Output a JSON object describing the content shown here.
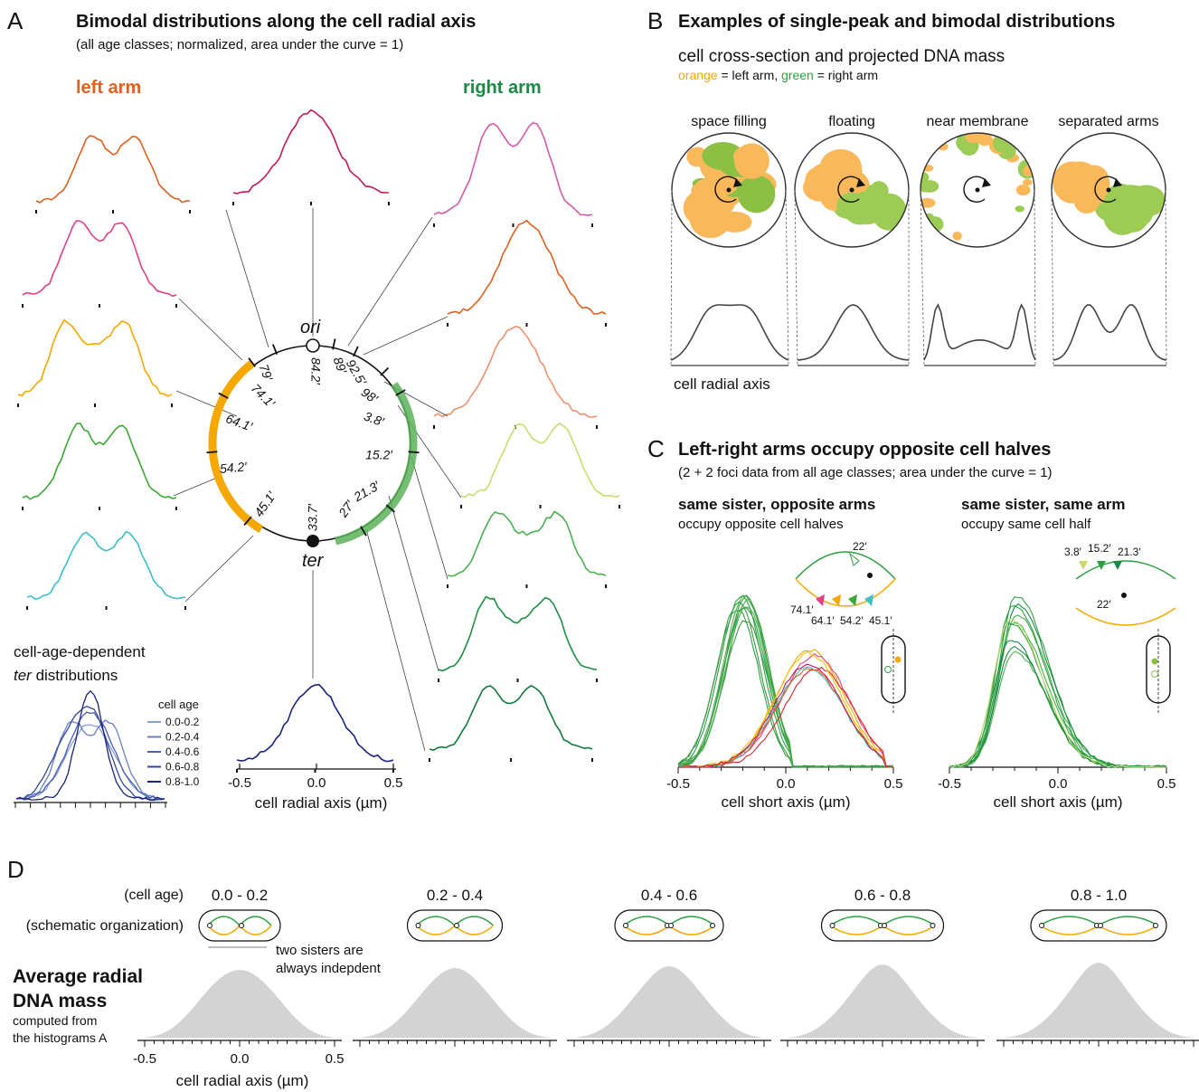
{
  "panel_a": {
    "letter": "A",
    "title": "Bimodal distributions along the cell radial axis",
    "subtitle": "(all age classes; normalized, area under the curve = 1)",
    "left_label": "left arm",
    "right_label": "right arm",
    "ori": "ori",
    "ter": "ter",
    "positions": [
      "79′",
      "74.1′",
      "64.1′",
      "54.2′",
      "45.1′",
      "84.2′",
      "89′",
      "92.5′",
      "98′",
      "3.8′",
      "15.2′",
      "21.3′",
      "27′",
      "33.7′"
    ],
    "inset_line1": "cell-age-dependent",
    "inset_ter": "ter",
    "inset_line2": " distributions",
    "legend_title": "cell age",
    "legend": [
      "0.0-0.2",
      "0.2-0.4",
      "0.4-0.6",
      "0.6-0.8",
      "0.8-1.0"
    ],
    "ticks": [
      "-0.5",
      "0.0",
      "0.5"
    ],
    "axis_label": "cell radial axis (µm)"
  },
  "panel_b": {
    "letter": "B",
    "title": "Examples of single-peak and bimodal distributions",
    "subtitle": "cell cross-section and projected DNA mass",
    "key_orange": "orange",
    "key_left": " = left arm, ",
    "key_green": "green",
    "key_right": " = right arm",
    "examples": [
      "space filling",
      "floating",
      "near membrane",
      "separated arms"
    ],
    "axis_label": "cell radial axis"
  },
  "panel_c": {
    "letter": "C",
    "title": "Left-right arms occupy opposite cell halves",
    "subtitle": "(2 + 2 foci data from all age classes; area under the curve = 1)",
    "left": {
      "title": "same sister, opposite arms",
      "subtitle": "occupy opposite cell halves",
      "inset": [
        "22′",
        "74.1′",
        "64.1′",
        "54.2′",
        "45.1′"
      ]
    },
    "right": {
      "title": "same sister, same arm",
      "subtitle": "occupy same cell half",
      "inset": [
        "3.8′",
        "15.2′",
        "21.3′",
        "22′"
      ]
    },
    "ticks": [
      "-0.5",
      "0.0",
      "0.5"
    ],
    "axis_label": "cell short axis (µm)"
  },
  "panel_d": {
    "letter": "D",
    "age_label": "(cell age)",
    "schematic_label": "(schematic organization)",
    "ages": [
      "0.0 - 0.2",
      "0.2 - 0.4",
      "0.4 - 0.6",
      "0.6 - 0.8",
      "0.8 - 1.0"
    ],
    "note": [
      "two sisters are",
      "always indepdent"
    ],
    "title": [
      "Average radial",
      "DNA mass"
    ],
    "caption": [
      "computed from",
      "the histograms A"
    ],
    "ticks": [
      "-0.5",
      "0.0",
      "0.5"
    ],
    "axis_label": "cell radial axis (µm)"
  }
}
